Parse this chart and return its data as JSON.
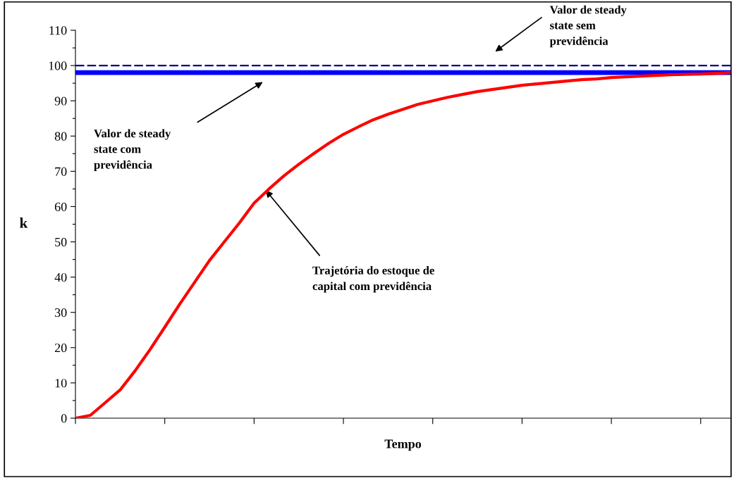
{
  "chart_data": {
    "type": "line",
    "xlabel": "Tempo",
    "ylabel": "k",
    "categories": [
      null,
      null,
      null,
      null,
      null,
      null,
      null,
      null,
      null,
      null,
      null,
      null,
      null,
      null,
      null,
      null,
      null,
      null,
      null,
      null,
      null,
      null,
      null,
      null,
      null,
      null,
      null,
      null,
      null,
      null,
      null,
      null,
      null,
      null,
      null,
      null,
      null,
      null,
      null,
      null,
      null,
      null,
      null,
      null,
      null
    ],
    "series": [
      {
        "color": "#ff0000",
        "values": [
          0,
          0.8,
          4.4,
          8,
          13.4,
          19.4,
          25.8,
          32.3,
          38.5,
          44.7,
          50,
          55.3,
          61,
          65,
          68.7,
          72,
          75,
          77.9,
          80.5,
          82.6,
          84.6,
          86.2,
          87.6,
          89,
          90,
          91,
          91.8,
          92.6,
          93.2,
          93.8,
          94.4,
          94.8,
          95.2,
          95.6,
          96,
          96.2,
          96.6,
          96.8,
          97,
          97.2,
          97.4,
          97.5,
          97.6,
          97.8,
          98
        ]
      }
    ],
    "ylim": [
      0,
      110
    ],
    "yticks": [
      0,
      {
        "value": 5,
        "label": null
      },
      10,
      {
        "value": 15,
        "label": null
      },
      20,
      {
        "value": 25,
        "label": null
      },
      30,
      {
        "value": 35,
        "label": null
      },
      40,
      {
        "value": 45,
        "label": null
      },
      50,
      {
        "value": 55,
        "label": null
      },
      60,
      {
        "value": 65,
        "label": null
      },
      70,
      {
        "value": 75,
        "label": null
      },
      80,
      {
        "value": 85,
        "label": null
      },
      90,
      {
        "value": 95,
        "label": null
      },
      100,
      {
        "value": 105,
        "label": null
      },
      110
    ],
    "ref_lines": [
      {
        "axis": "y",
        "value": 100,
        "color": "#000080",
        "line_style": "dashed"
      },
      {
        "axis": "y",
        "value": 98,
        "color": "#0000ff",
        "line_style": "solid"
      }
    ],
    "annotations": [
      "Valor de steady\nstate sem\nprevidência",
      "Valor de steady\nstate com\nprevidência",
      "Trajetória do estoque de\ncapital com previdência"
    ],
    "grid": false,
    "legend": false,
    "marker": "none",
    "line_style": "solid"
  }
}
